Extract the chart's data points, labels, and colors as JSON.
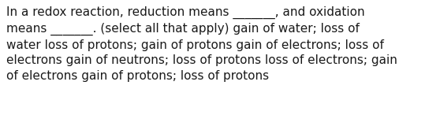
{
  "text": "In a redox reaction, reduction means _______, and oxidation\nmeans _______. (select all that apply) gain of water; loss of\nwater loss of protons; gain of protons gain of electrons; loss of\nelectrons gain of neutrons; loss of protons loss of electrons; gain\nof electrons gain of protons; loss of protons",
  "background_color": "#ffffff",
  "text_color": "#1a1a1a",
  "font_size": 11.0,
  "fig_width": 5.58,
  "fig_height": 1.46,
  "dpi": 100
}
